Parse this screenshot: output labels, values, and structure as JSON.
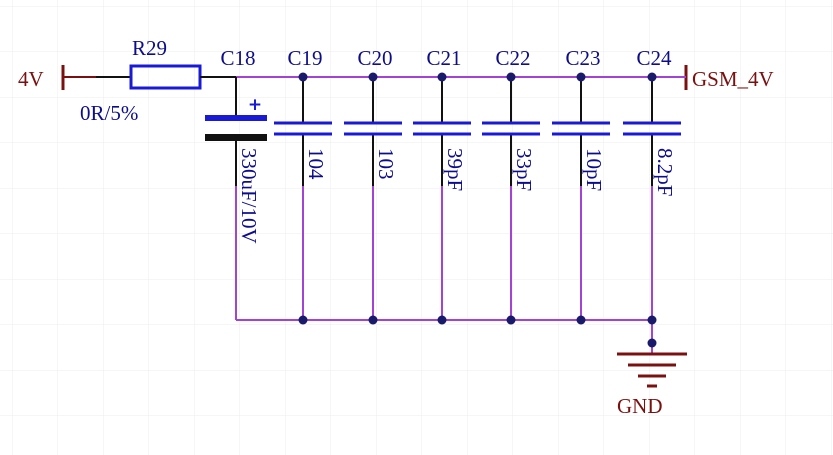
{
  "colors": {
    "background": "#ffffff",
    "grid": "#ececec",
    "wire": "#a243d6",
    "component": "#1a1ad6",
    "label_text": "#0d0d8c",
    "power_port": "#7a1010",
    "junction": "#1a1a6a",
    "electrolytic_negative_plate": "#111111"
  },
  "ports": {
    "input": "4V",
    "output": "GSM_4V",
    "ground": "GND"
  },
  "resistor": {
    "designator": "R29",
    "value": "0R/5%"
  },
  "capacitors": [
    {
      "designator": "C18",
      "value": "330uF/10V",
      "polarized": true,
      "polarity_mark": "+"
    },
    {
      "designator": "C19",
      "value": "104"
    },
    {
      "designator": "C20",
      "value": "103"
    },
    {
      "designator": "C21",
      "value": "39pF"
    },
    {
      "designator": "C22",
      "value": "33pF"
    },
    {
      "designator": "C23",
      "value": "10pF"
    },
    {
      "designator": "C24",
      "value": "8.2pF"
    }
  ]
}
